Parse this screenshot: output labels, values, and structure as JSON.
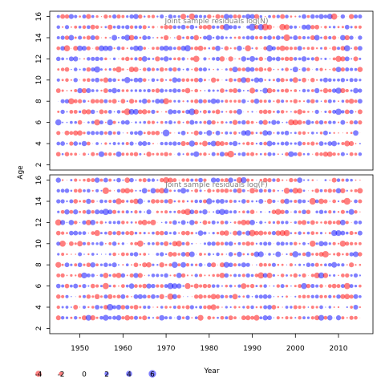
{
  "chart_data": {
    "type": "scatter",
    "xlabel": "Year",
    "ylabel": "Age",
    "xlim": [
      1943,
      2018
    ],
    "x_ticks": [
      1950,
      1960,
      1970,
      1980,
      1990,
      2000,
      2010
    ],
    "x_tick_labels": [
      "1950",
      "1960",
      "1970",
      "1980",
      "1990",
      "2000",
      "2010"
    ],
    "x_years": [
      1945,
      2015
    ],
    "ages": [
      3,
      16
    ],
    "colors": {
      "positive": "#0000ff",
      "negative": "#ff0000"
    },
    "marker_alpha": 0.5,
    "panels": [
      {
        "title": "Joint sample residuals log(N)",
        "ylim": [
          1.5,
          16.5
        ],
        "y_ticks": [
          2,
          4,
          6,
          8,
          10,
          12,
          14,
          16
        ],
        "y_tick_labels": [
          "2",
          "4",
          "6",
          "8",
          "10",
          "12",
          "14",
          "16"
        ],
        "seed": 11
      },
      {
        "title": "Joint sample residuals log(F)",
        "ylim": [
          1.5,
          16.5
        ],
        "y_ticks": [
          2,
          4,
          6,
          8,
          10,
          12,
          14,
          16
        ],
        "y_tick_labels": [
          "2",
          "4",
          "6",
          "8",
          "10",
          "12",
          "14",
          "16"
        ],
        "seed": 47
      }
    ],
    "legend": {
      "values": [
        -4,
        -2,
        0,
        2,
        4,
        6
      ],
      "labels": [
        "-4",
        "-2",
        "0",
        "2",
        "4",
        "6"
      ],
      "placement": "bottom-left"
    }
  }
}
